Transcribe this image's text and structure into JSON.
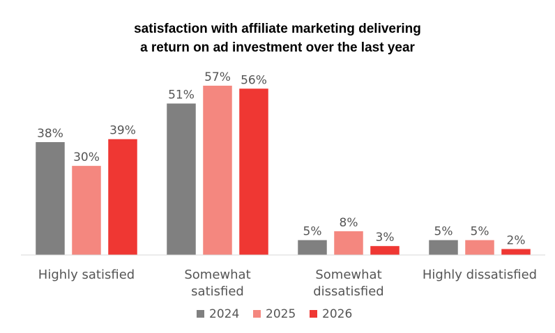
{
  "chart_data": {
    "type": "bar",
    "title_lines": [
      "satisfaction with affiliate marketing delivering",
      "a return on ad investment over the last year"
    ],
    "categories": [
      "Highly satisfied",
      "Somewhat satisfied",
      "Somewhat dissatisfied",
      "Highly dissatisfied"
    ],
    "category_label_lines": [
      [
        "Highly satisfied"
      ],
      [
        "Somewhat",
        "satisfied"
      ],
      [
        "Somewhat",
        "dissatisfied"
      ],
      [
        "Highly dissatisfied"
      ]
    ],
    "series": [
      {
        "name": "2024",
        "color": "#808080",
        "values": [
          38,
          51,
          5,
          5
        ],
        "labels": [
          "38%",
          "51%",
          "5%",
          "5%"
        ]
      },
      {
        "name": "2025",
        "color": "#F4877F",
        "values": [
          30,
          57,
          8,
          5
        ],
        "labels": [
          "30%",
          "57%",
          "8%",
          "5%"
        ]
      },
      {
        "name": "2026",
        "color": "#EF3733",
        "values": [
          39,
          56,
          3,
          2
        ],
        "labels": [
          "39%",
          "56%",
          "3%",
          "2%"
        ]
      }
    ],
    "xlabel": "",
    "ylabel": "",
    "ylim": [
      0,
      57
    ],
    "grid": false,
    "legend_position": "bottom"
  }
}
